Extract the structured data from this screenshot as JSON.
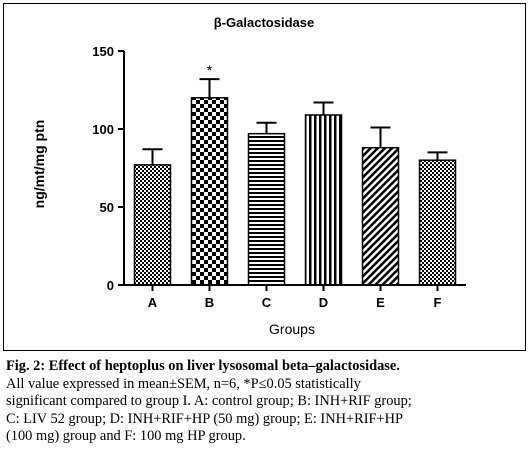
{
  "chart_data": {
    "type": "bar",
    "title": "β-Galactosidase",
    "xlabel": "Groups",
    "ylabel": "ng/mt/mg ptn",
    "categories": [
      "A",
      "B",
      "C",
      "D",
      "E",
      "F"
    ],
    "values": [
      77,
      120,
      97,
      109,
      88,
      80
    ],
    "errors": [
      10,
      12,
      7,
      8,
      13,
      5
    ],
    "significance": [
      "",
      "*",
      "",
      "",
      "",
      ""
    ],
    "ylim": [
      0,
      150
    ],
    "yticks": [
      0,
      50,
      100,
      150
    ],
    "grid": false,
    "patterns": [
      "checker-small",
      "checker-large",
      "horizontal",
      "vertical",
      "diagonal",
      "checker-small"
    ]
  },
  "caption": {
    "lead": "Fig. 2: Effect of heptoplus on liver lysosomal beta–galactosidase.",
    "lines": [
      "All value expressed in mean±SEM, n=6, *P≤0.05 statistically",
      "significant compared to group I. A: control group; B: INH+RIF group;",
      "C: LIV 52 group; D: INH+RIF+HP (50 mg) group; E: INH+RIF+HP",
      "(100 mg) group and F: 100 mg HP group."
    ]
  }
}
